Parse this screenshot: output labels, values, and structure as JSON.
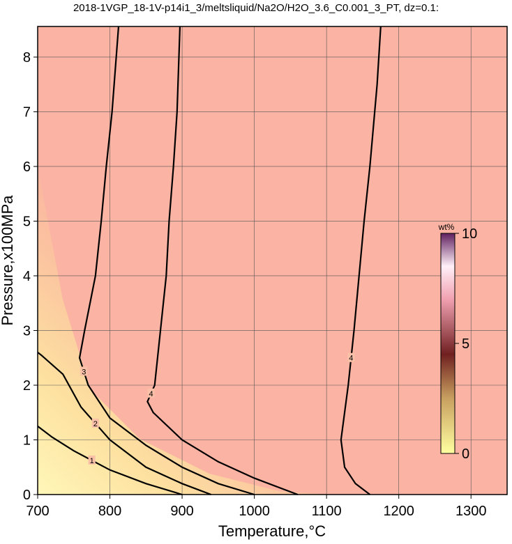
{
  "chart_data": {
    "type": "contour",
    "title": "2018-1VGP_18-1V-p14i1_3/meltsliquid/Na2O/H2O_3.6_C0.001_3_PT, dz=0.1:",
    "x_label": "Temperature,°C",
    "y_label": "Pressure,x100MPa",
    "xlim": [
      700,
      1350
    ],
    "ylim": [
      0,
      8.56
    ],
    "xticks": [
      700,
      800,
      900,
      1000,
      1100,
      1200,
      1300
    ],
    "yticks": [
      0,
      1,
      2,
      3,
      4,
      5,
      6,
      7,
      8
    ],
    "grid": true,
    "contours": [
      {
        "level": 1,
        "x": [
          900,
          850,
          800,
          750,
          720,
          700
        ],
        "y": [
          0,
          0.2,
          0.45,
          0.8,
          1.05,
          1.25
        ]
      },
      {
        "level": 2,
        "x": [
          940,
          900,
          850,
          800,
          760,
          735,
          705,
          700
        ],
        "y": [
          0,
          0.2,
          0.5,
          1.0,
          1.6,
          2.2,
          2.55,
          2.6
        ]
      },
      {
        "level": 3,
        "x": [
          1000,
          950,
          900,
          850,
          800,
          770,
          758,
          765,
          780,
          788,
          795,
          803,
          812
        ],
        "y": [
          0,
          0.2,
          0.5,
          0.9,
          1.4,
          2.0,
          2.5,
          3,
          4,
          5,
          6,
          7,
          8.56
        ]
      },
      {
        "level": 4,
        "x": [
          1060,
          1000,
          950,
          900,
          860,
          852,
          862,
          870,
          878,
          882,
          888,
          893,
          897
        ],
        "y": [
          0,
          0.3,
          0.6,
          1.0,
          1.5,
          1.7,
          2.0,
          3,
          4,
          5,
          6,
          7,
          8.56
        ]
      },
      {
        "level": 4,
        "x": [
          1160,
          1140,
          1125,
          1120,
          1130,
          1138,
          1145,
          1152,
          1160,
          1170,
          1175
        ],
        "y": [
          0,
          0.2,
          0.5,
          1.0,
          2,
          3,
          4,
          5,
          6,
          7.5,
          8.56
        ]
      }
    ],
    "colorbar": {
      "label": "wt%",
      "lim": [
        0,
        10
      ],
      "ticks": [
        0,
        5,
        10
      ]
    }
  }
}
